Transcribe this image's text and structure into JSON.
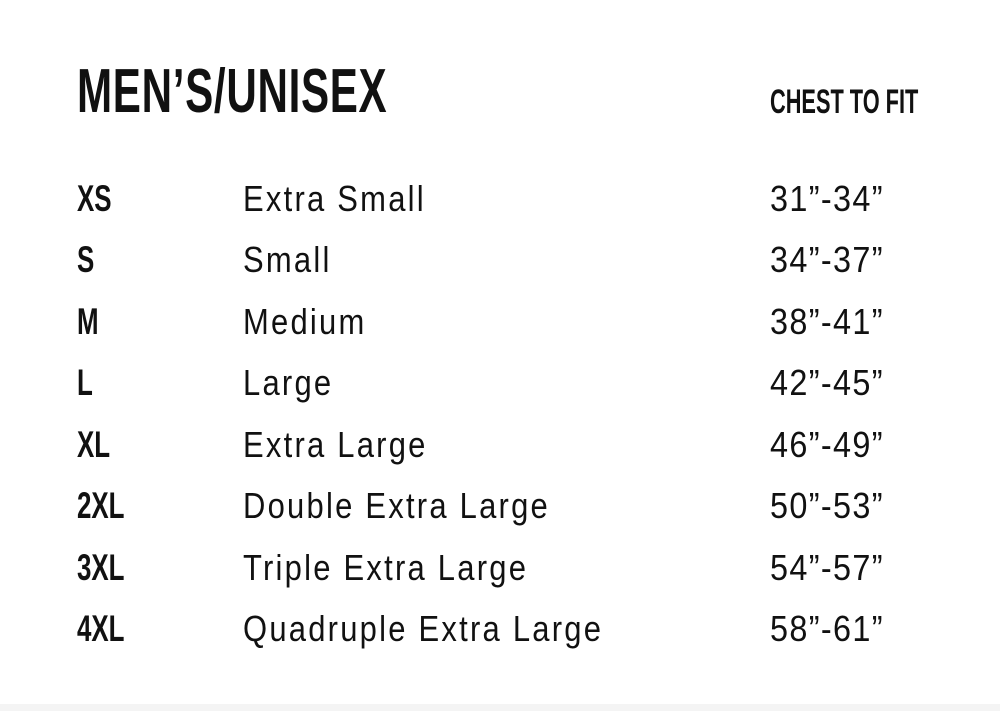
{
  "header": {
    "title": "MEN’S/UNISEX",
    "column_label": "CHEST TO FIT"
  },
  "sizes": [
    {
      "code": "XS",
      "name": "Extra Small",
      "chest": "31”-34”"
    },
    {
      "code": "S",
      "name": "Small",
      "chest": "34”-37”"
    },
    {
      "code": "M",
      "name": "Medium",
      "chest": "38”-41”"
    },
    {
      "code": "L",
      "name": "Large",
      "chest": "42”-45”"
    },
    {
      "code": "XL",
      "name": "Extra Large",
      "chest": "46”-49”"
    },
    {
      "code": "2XL",
      "name": "Double Extra Large",
      "chest": "50”-53”"
    },
    {
      "code": "3XL",
      "name": "Triple Extra Large",
      "chest": "54”-57”"
    },
    {
      "code": "4XL",
      "name": "Quadruple Extra Large",
      "chest": "58”-61”"
    }
  ]
}
